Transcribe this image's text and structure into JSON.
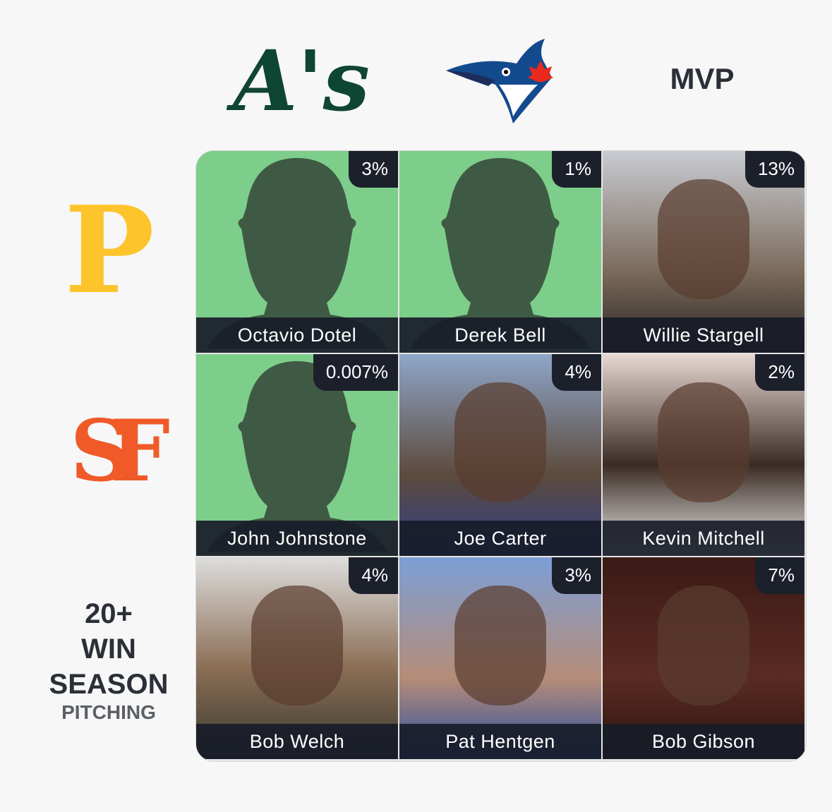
{
  "columns": {
    "athletics": "A's",
    "award": "MVP"
  },
  "rows": {
    "pirates": "P",
    "giants": "SF",
    "criteria": [
      "20+",
      "WIN",
      "SEASON"
    ],
    "criteria_sub": "PITCHING"
  },
  "grid": {
    "cells": [
      [
        {
          "name": "Octavio Dotel",
          "pct": "3%",
          "photo": false
        },
        {
          "name": "Derek Bell",
          "pct": "1%",
          "photo": false
        },
        {
          "name": "Willie Stargell",
          "pct": "13%",
          "photo": true
        }
      ],
      [
        {
          "name": "John Johnstone",
          "pct": "0.007%",
          "photo": false
        },
        {
          "name": "Joe Carter",
          "pct": "4%",
          "photo": true
        },
        {
          "name": "Kevin Mitchell",
          "pct": "2%",
          "photo": true
        }
      ],
      [
        {
          "name": "Bob Welch",
          "pct": "4%",
          "photo": true
        },
        {
          "name": "Pat Hentgen",
          "pct": "3%",
          "photo": true
        },
        {
          "name": "Bob Gibson",
          "pct": "7%",
          "photo": true
        }
      ]
    ]
  }
}
